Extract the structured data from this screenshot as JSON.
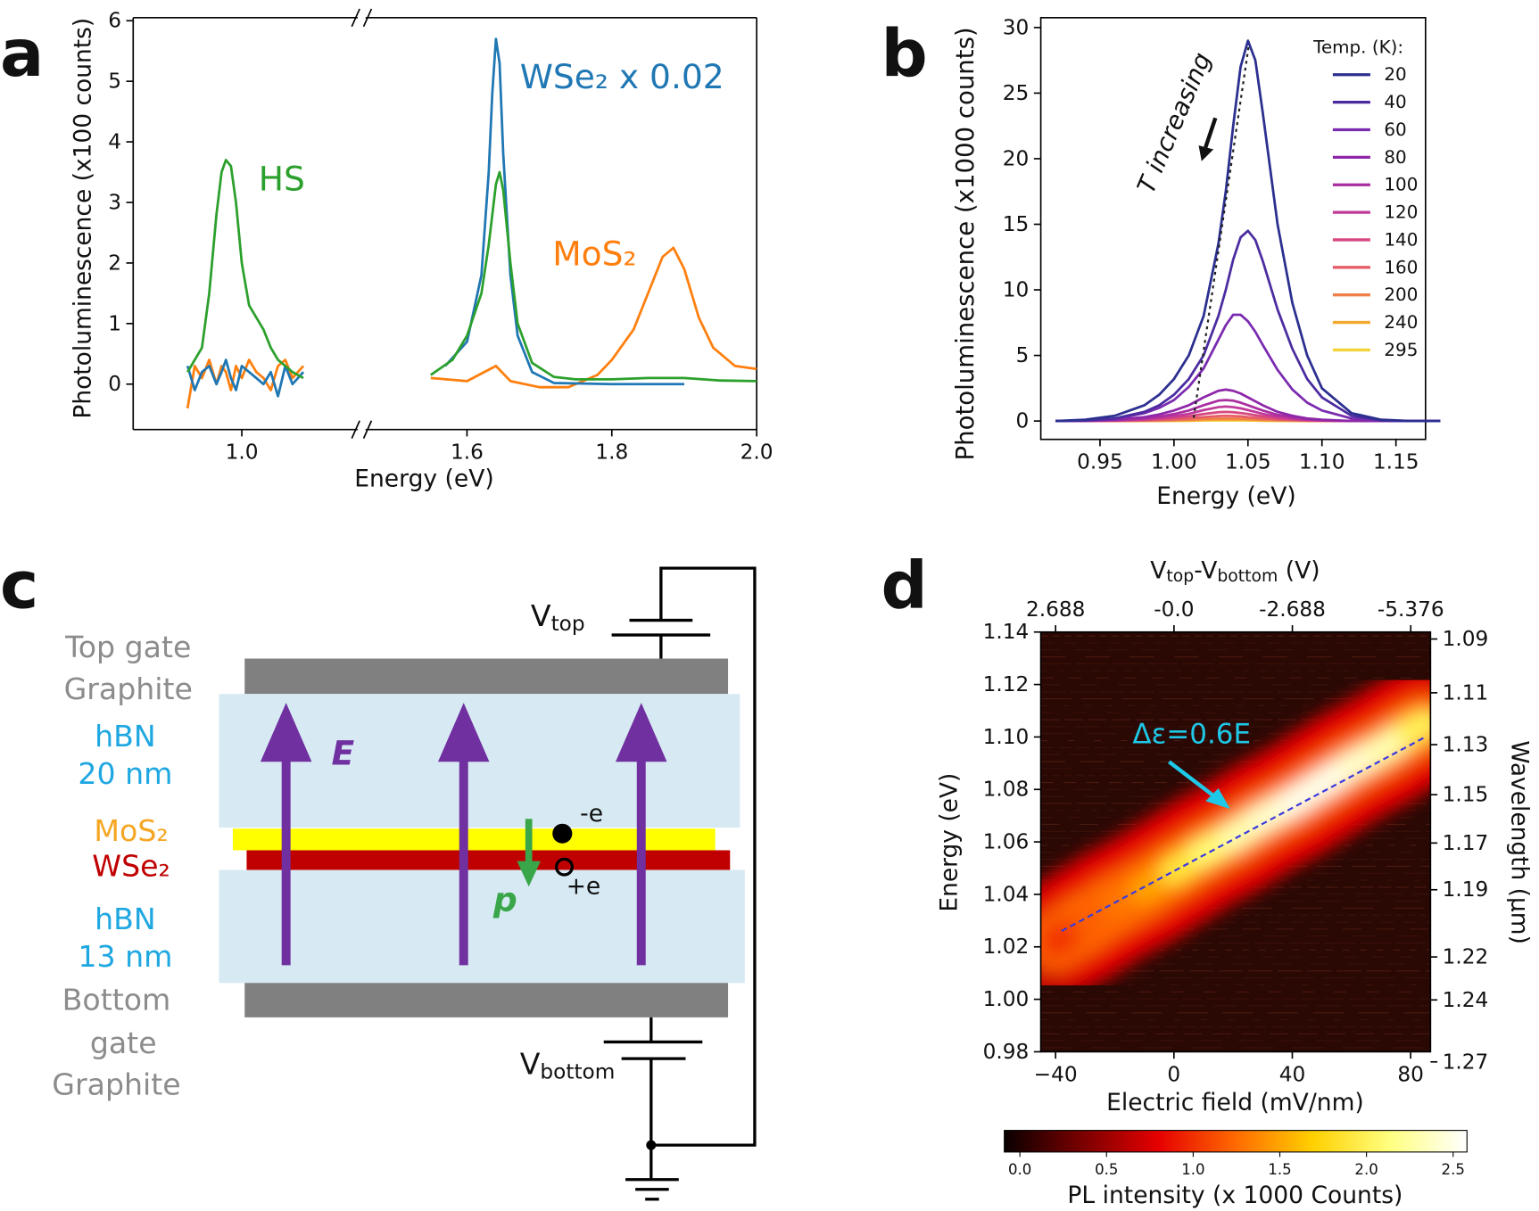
{
  "chart_data": [
    {
      "panel": "a",
      "type": "line",
      "xlabel": "Energy (eV)",
      "ylabel": "Photoluminescence (x100 counts)",
      "xlim": [
        0.85,
        2.0
      ],
      "xbreak": [
        1.16,
        1.46
      ],
      "xticks": [
        {
          "value": 1,
          "label": "1.0"
        },
        1.6,
        1.8,
        {
          "value": 2,
          "label": "2.0"
        }
      ],
      "ylim": [
        -0.75,
        6.05
      ],
      "yticks": [
        0,
        1,
        2,
        3,
        4,
        5,
        6
      ],
      "series": [
        {
          "name": "HS",
          "color": "#2ca02c",
          "x": [
            0.925,
            0.935,
            0.945,
            0.955,
            0.965,
            0.972,
            0.978,
            0.985,
            0.992,
            1.0,
            1.01,
            1.02,
            1.03,
            1.04,
            1.05,
            1.06,
            1.07,
            1.085,
            null,
            1.55,
            1.58,
            1.6,
            1.62,
            1.63,
            1.64,
            1.645,
            1.65,
            1.66,
            1.67,
            1.69,
            1.72,
            1.75,
            1.8,
            1.85,
            1.9,
            1.95,
            2.0
          ],
          "values": [
            0.2,
            0.4,
            0.6,
            1.5,
            2.8,
            3.5,
            3.7,
            3.6,
            3.0,
            2.0,
            1.3,
            1.1,
            0.9,
            0.6,
            0.4,
            0.3,
            0.2,
            0.1,
            null,
            0.15,
            0.4,
            0.8,
            1.5,
            2.3,
            3.3,
            3.5,
            3.2,
            2.0,
            1.0,
            0.35,
            0.12,
            0.08,
            0.08,
            0.1,
            0.1,
            0.06,
            0.05
          ]
        },
        {
          "name": "WSe₂ x 0.02",
          "color": "#1f77b4",
          "x": [
            0.925,
            0.935,
            0.945,
            0.955,
            0.965,
            0.972,
            0.978,
            0.985,
            0.992,
            1.0,
            1.01,
            1.02,
            1.03,
            1.04,
            1.05,
            1.06,
            1.07,
            1.085,
            null,
            1.57,
            1.6,
            1.62,
            1.63,
            1.635,
            1.64,
            1.645,
            1.65,
            1.66,
            1.67,
            1.69,
            1.72,
            1.8,
            1.9
          ],
          "values": [
            0.3,
            -0.1,
            0.2,
            0.3,
            0.0,
            0.2,
            0.4,
            0.1,
            -0.1,
            0.3,
            0.2,
            0.1,
            0.0,
            0.2,
            -0.2,
            0.3,
            0.0,
            0.2,
            null,
            0.3,
            0.7,
            1.8,
            3.5,
            4.8,
            5.7,
            5.3,
            3.8,
            1.8,
            0.8,
            0.2,
            0.02,
            0.0,
            0.0
          ]
        },
        {
          "name": "MoS₂",
          "color": "#ff7f0e",
          "x": [
            0.925,
            0.935,
            0.945,
            0.955,
            0.965,
            0.972,
            0.978,
            0.985,
            0.992,
            1.0,
            1.01,
            1.02,
            1.03,
            1.04,
            1.05,
            1.06,
            1.07,
            1.085,
            null,
            1.55,
            1.6,
            1.64,
            1.66,
            1.7,
            1.74,
            1.78,
            1.8,
            1.83,
            1.85,
            1.87,
            1.885,
            1.9,
            1.92,
            1.94,
            1.97,
            2.0
          ],
          "values": [
            -0.4,
            0.3,
            0.1,
            0.4,
            0.0,
            0.3,
            0.2,
            -0.1,
            0.3,
            0.1,
            0.4,
            0.2,
            0.1,
            -0.1,
            0.3,
            0.4,
            0.1,
            0.3,
            null,
            0.1,
            0.05,
            0.3,
            0.05,
            -0.05,
            -0.05,
            0.15,
            0.4,
            0.9,
            1.5,
            2.1,
            2.25,
            1.9,
            1.1,
            0.6,
            0.3,
            0.25
          ]
        }
      ]
    },
    {
      "panel": "b",
      "type": "line",
      "xlabel": "Energy (eV)",
      "ylabel": "Photoluminescence (x1000 counts)",
      "annotation": "T increasing",
      "legend": "upper right",
      "legend_title": "Temp. (K):",
      "xlim": [
        0.91,
        1.17
      ],
      "xticks": [
        0.95,
        {
          "value": 1,
          "label": "1.00"
        },
        1.05,
        {
          "value": 1.1,
          "label": "1.10"
        },
        1.15
      ],
      "ylim": [
        -1.4,
        30.75
      ],
      "yticks": [
        0,
        5,
        10,
        15,
        20,
        25,
        30
      ],
      "x": [
        0.92,
        0.94,
        0.96,
        0.98,
        0.99,
        1.0,
        1.01,
        1.02,
        1.03,
        1.035,
        1.04,
        1.045,
        1.05,
        1.055,
        1.06,
        1.07,
        1.08,
        1.09,
        1.1,
        1.12,
        1.14,
        1.16,
        1.18
      ],
      "series": [
        {
          "name": "20",
          "color": "#2b2f8f",
          "values": [
            0,
            0.1,
            0.4,
            1.2,
            2.0,
            3.2,
            5.0,
            8.0,
            13.5,
            17.5,
            22.5,
            27,
            29,
            27.5,
            23.5,
            15,
            9,
            5,
            2.5,
            0.6,
            0.1,
            0,
            0
          ]
        },
        {
          "name": "40",
          "color": "#4b2ca0",
          "values": [
            0,
            0.05,
            0.2,
            0.7,
            1.2,
            2.0,
            3.2,
            5.0,
            8.0,
            10.0,
            12.3,
            14.0,
            14.5,
            13.8,
            12.2,
            8.5,
            5.5,
            3.2,
            1.8,
            0.4,
            0.05,
            0,
            0
          ]
        },
        {
          "name": "60",
          "color": "#7a2bb0",
          "values": [
            0,
            0.05,
            0.15,
            0.6,
            1.0,
            1.6,
            2.6,
            4.0,
            6.2,
            7.3,
            8.1,
            8.1,
            7.6,
            6.8,
            5.8,
            3.9,
            2.4,
            1.4,
            0.8,
            0.2,
            0,
            0,
            0
          ]
        },
        {
          "name": "80",
          "color": "#8e27a8",
          "values": [
            0,
            0.02,
            0.1,
            0.3,
            0.5,
            0.8,
            1.2,
            1.8,
            2.3,
            2.4,
            2.3,
            2.1,
            1.8,
            1.5,
            1.2,
            0.7,
            0.4,
            0.2,
            0.1,
            0,
            0,
            0,
            0
          ]
        },
        {
          "name": "100",
          "color": "#a92ea0",
          "values": [
            0,
            0.01,
            0.07,
            0.2,
            0.33,
            0.53,
            0.8,
            1.2,
            1.55,
            1.6,
            1.55,
            1.4,
            1.2,
            1.0,
            0.8,
            0.47,
            0.27,
            0.13,
            0.07,
            0,
            0,
            0,
            0
          ]
        },
        {
          "name": "120",
          "color": "#c0389a",
          "values": [
            0,
            0.01,
            0.05,
            0.14,
            0.23,
            0.37,
            0.55,
            0.83,
            1.06,
            1.1,
            1.06,
            0.97,
            0.83,
            0.69,
            0.55,
            0.32,
            0.18,
            0.09,
            0.05,
            0,
            0,
            0,
            0
          ]
        },
        {
          "name": "140",
          "color": "#d6477f",
          "values": [
            0,
            0,
            0.03,
            0.09,
            0.15,
            0.23,
            0.35,
            0.53,
            0.67,
            0.7,
            0.67,
            0.61,
            0.53,
            0.44,
            0.35,
            0.2,
            0.12,
            0.06,
            0.03,
            0,
            0,
            0,
            0
          ]
        },
        {
          "name": "160",
          "color": "#e65d6a",
          "values": [
            0,
            0,
            0.02,
            0.05,
            0.08,
            0.13,
            0.2,
            0.3,
            0.38,
            0.4,
            0.38,
            0.35,
            0.3,
            0.25,
            0.2,
            0.12,
            0.07,
            0.03,
            0.02,
            0,
            0,
            0,
            0
          ]
        },
        {
          "name": "200",
          "color": "#f0804a",
          "values": [
            0,
            0,
            0.01,
            0.03,
            0.04,
            0.07,
            0.1,
            0.15,
            0.19,
            0.2,
            0.19,
            0.18,
            0.15,
            0.13,
            0.1,
            0.06,
            0.04,
            0.02,
            0.01,
            0,
            0,
            0,
            0
          ]
        },
        {
          "name": "240",
          "color": "#f5a830",
          "values": [
            0,
            0,
            0,
            0.01,
            0.02,
            0.03,
            0.05,
            0.08,
            0.1,
            0.1,
            0.1,
            0.09,
            0.08,
            0.06,
            0.05,
            0.03,
            0.02,
            0.01,
            0,
            0,
            0,
            0,
            0
          ]
        },
        {
          "name": "295",
          "color": "#f2d33a",
          "values": [
            0,
            0,
            0,
            0,
            0.01,
            0.01,
            0.02,
            0.04,
            0.05,
            0.05,
            0.05,
            0.04,
            0.04,
            0.03,
            0.02,
            0.01,
            0.01,
            0,
            0,
            0,
            0,
            0,
            0
          ]
        }
      ]
    },
    {
      "panel": "d",
      "type": "heatmap",
      "xlabel": "Electric field (mV/nm)",
      "ylabel": "Energy (eV)",
      "x2label": [
        "V",
        "top",
        "-V",
        "bottom",
        " (V)"
      ],
      "y2label": "Wavelength (µm)",
      "y2scale": "reciprocal",
      "colorbar_label": "PL intensity (x 1000 Counts)",
      "xlim": [
        -45,
        86.7
      ],
      "xticks": [
        {
          "value": -40,
          "label": "−40"
        },
        0,
        40,
        80
      ],
      "x2lim": [
        3.024,
        -5.824
      ],
      "x2ticks": [
        2.688,
        {
          "value": 0,
          "label": "-0.0"
        },
        -2.688,
        -5.376
      ],
      "ylim": [
        0.98,
        1.14
      ],
      "yticks": [
        0.98,
        {
          "value": 1,
          "label": "1.00"
        },
        1.02,
        1.04,
        1.06,
        1.08,
        {
          "value": 1.1,
          "label": "1.10"
        },
        1.12,
        1.14
      ],
      "y2lim": [
        1.265,
        1.0875
      ],
      "y2ticks": [
        1.27,
        1.24,
        1.22,
        1.19,
        1.17,
        1.15,
        1.13,
        1.11,
        1.09
      ],
      "clim": [
        -0.09,
        2.58
      ],
      "cbar_ticks": [
        {
          "value": 0,
          "label": "0.0"
        },
        0.5,
        {
          "value": 1,
          "label": "1.0"
        },
        1.5,
        {
          "value": 2,
          "label": "2.0"
        },
        2.5
      ],
      "colormap": [
        "#0a0000",
        "#780000",
        "#e60000",
        "#ff6a00",
        "#ffd000",
        "#ffff80",
        "#ffffff"
      ],
      "ridge": {
        "x": [
          -40,
          -30,
          -20,
          -10,
          0,
          10,
          20,
          30,
          40,
          50,
          60,
          70,
          80,
          85
        ],
        "values": [
          1.022,
          1.029,
          1.036,
          1.042,
          1.049,
          1.056,
          1.062,
          1.069,
          1.075,
          1.082,
          1.089,
          1.095,
          1.102,
          1.105
        ],
        "intensity": [
          1.0,
          1.2,
          1.3,
          1.5,
          1.9,
          2.1,
          2.3,
          2.4,
          2.5,
          2.5,
          2.4,
          2.3,
          2.0,
          1.8
        ]
      },
      "fit": {
        "label": "Δε=0.6E",
        "color": "#3a3adf",
        "x": [
          -38,
          85
        ],
        "values": [
          1.026,
          1.1
        ]
      }
    }
  ],
  "diagram": {
    "panel": "c",
    "labels": [
      "Top gate",
      "Graphite",
      "hBN",
      "20 nm",
      "MoS₂",
      "WSe₂",
      "hBN",
      "13 nm",
      "Bottom",
      "gate",
      "Graphite"
    ],
    "field": "E",
    "dipole": "p",
    "electron": "-e",
    "hole": "+e",
    "v_top": [
      "V",
      "top"
    ],
    "v_bottom": [
      "V",
      "bottom"
    ]
  }
}
